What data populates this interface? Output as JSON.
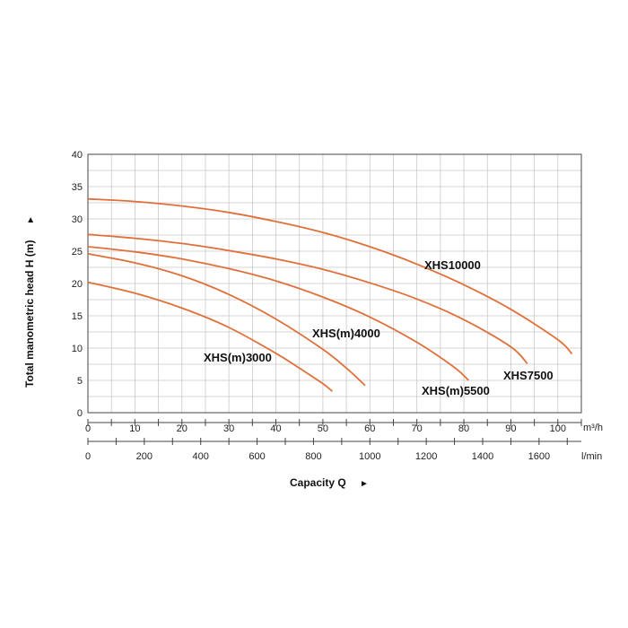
{
  "chart_data": {
    "type": "line",
    "ylabel": "Total manometric head H (m)",
    "xlabel": "Capacity Q",
    "x_unit_primary": "m³/h",
    "x_unit_secondary": "l/min",
    "xlim": [
      0,
      105
    ],
    "ylim": [
      0,
      40
    ],
    "x_ticks": [
      0,
      10,
      20,
      30,
      40,
      50,
      60,
      70,
      80,
      90,
      100
    ],
    "y_ticks": [
      0,
      5,
      10,
      15,
      20,
      25,
      30,
      35,
      40
    ],
    "secondary_ticks": [
      0,
      200,
      400,
      600,
      800,
      1000,
      1200,
      1400,
      1600
    ],
    "grid": true,
    "line_color": "#e0703a",
    "series": [
      {
        "name": "XHS(m)3000",
        "x": [
          0,
          10,
          20,
          30,
          40,
          45,
          50,
          52
        ],
        "y": [
          20.2,
          18.5,
          16.2,
          13.2,
          9.2,
          6.9,
          4.5,
          3.3
        ]
      },
      {
        "name": "XHS(m)4000",
        "x": [
          0,
          10,
          20,
          30,
          40,
          50,
          55,
          59
        ],
        "y": [
          24.6,
          23.2,
          21.2,
          18.3,
          14.5,
          9.8,
          6.9,
          4.2
        ]
      },
      {
        "name": "XHS(m)5500",
        "x": [
          0,
          10,
          20,
          30,
          40,
          50,
          60,
          70,
          78,
          81
        ],
        "y": [
          25.7,
          24.9,
          23.8,
          22.3,
          20.4,
          17.9,
          14.8,
          10.9,
          7.0,
          5.0
        ]
      },
      {
        "name": "XHS7500",
        "x": [
          0,
          10,
          20,
          30,
          40,
          50,
          60,
          70,
          80,
          90,
          93.5
        ],
        "y": [
          27.6,
          27.0,
          26.2,
          25.1,
          23.8,
          22.2,
          20.1,
          17.6,
          14.4,
          10.2,
          7.6
        ]
      },
      {
        "name": "XHS10000",
        "x": [
          0,
          10,
          20,
          30,
          40,
          50,
          60,
          70,
          80,
          90,
          100,
          103
        ],
        "y": [
          33.1,
          32.7,
          32.0,
          31.0,
          29.6,
          27.9,
          25.7,
          23.0,
          19.8,
          16.0,
          11.3,
          9.1
        ]
      }
    ],
    "series_labels": [
      "XHS(m)3000",
      "XHS(m)4000",
      "XHS(m)5500",
      "XHS7500",
      "XHS10000"
    ],
    "arrow_glyph": "►"
  }
}
